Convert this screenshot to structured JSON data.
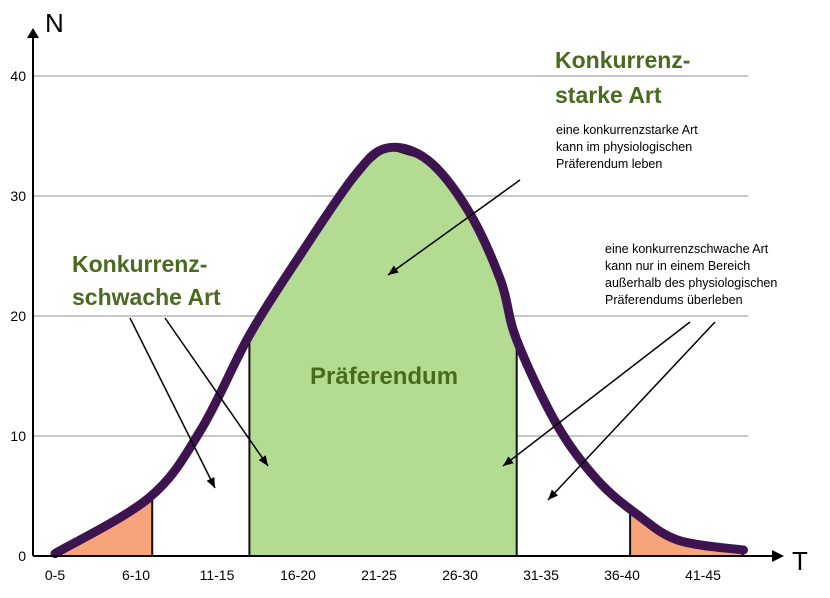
{
  "chart_data": {
    "type": "area",
    "xlabel": "T",
    "ylabel": "N",
    "categories": [
      "0-5",
      "6-10",
      "11-15",
      "16-20",
      "21-25",
      "26-30",
      "31-35",
      "36-40",
      "41-45"
    ],
    "yticks": [
      0,
      10,
      20,
      30,
      40
    ],
    "ylim": [
      0,
      40
    ],
    "grid": true,
    "curve": [
      [
        0,
        0.2
      ],
      [
        1.17,
        4.9
      ],
      [
        1.8,
        10.5
      ],
      [
        2.4,
        18.4
      ],
      [
        3.0,
        24.8
      ],
      [
        3.7,
        31.7
      ],
      [
        4.1,
        34
      ],
      [
        4.6,
        33
      ],
      [
        5.1,
        28.8
      ],
      [
        5.5,
        23
      ],
      [
        5.7,
        18
      ],
      [
        6.2,
        10.9
      ],
      [
        6.7,
        6.3
      ],
      [
        7.2,
        3.4
      ],
      [
        7.7,
        1.3
      ],
      [
        8.5,
        0.5
      ]
    ],
    "regions": [
      {
        "label": "Präferendum",
        "from": 2.4,
        "to": 5.7,
        "color": "#b3dc92"
      },
      {
        "from": 0,
        "to": 1.2,
        "color": "#f8a47a"
      },
      {
        "from": 7.1,
        "to": 8.5,
        "color": "#f8a47a"
      }
    ],
    "curve_color": "#3d1450",
    "annotations": {
      "strong_title": [
        "Konkurrenz-",
        "starke Art"
      ],
      "strong_note": [
        "eine konkurrenzstarke Art",
        "kann im physiologischen",
        "Präferendum leben"
      ],
      "weak_title": [
        "Konkurrenz-",
        "schwache Art"
      ],
      "weak_note": [
        "eine konkurrenzschwache Art",
        "kann nur in einem Bereich",
        "außerhalb des physiologischen",
        "Präferendums überleben"
      ]
    }
  }
}
